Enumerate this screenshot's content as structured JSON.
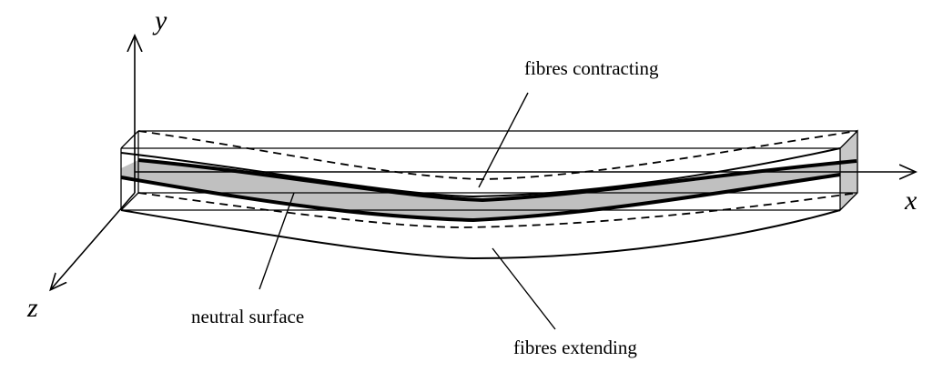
{
  "axes": {
    "x": "x",
    "y": "y",
    "z": "z"
  },
  "labels": {
    "top": "fibres contracting",
    "neutral": "neutral surface",
    "bottom": "fibres extending"
  },
  "colors": {
    "neutral_fill": "#c0c0c0",
    "stroke": "#000000",
    "end_face": "#c8c8c8"
  }
}
